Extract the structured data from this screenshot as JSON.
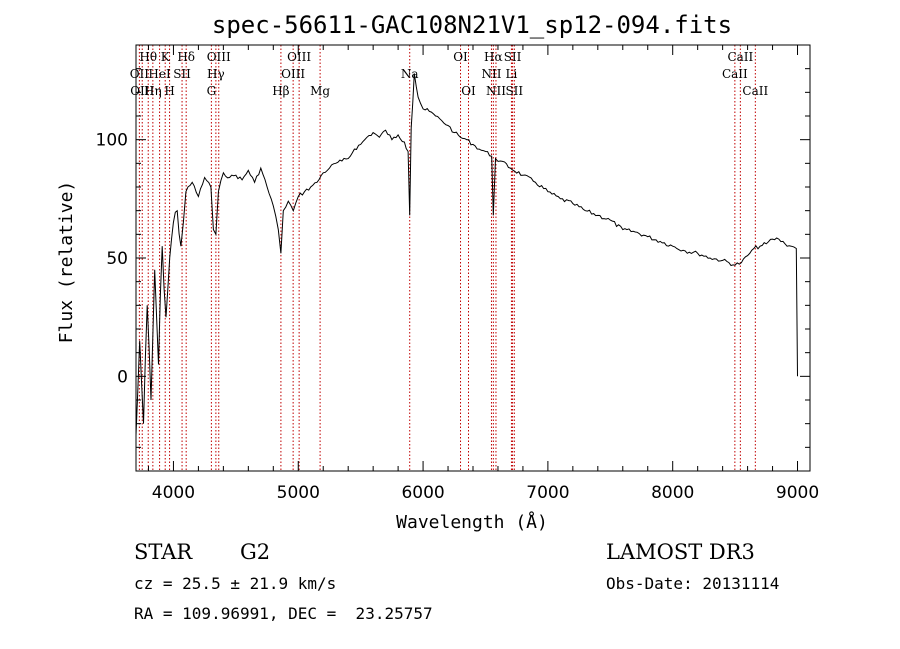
{
  "footer": {
    "object_class": "STAR",
    "subclass": "G2",
    "cz": "cz = 25.5 ± 21.9 km/s",
    "coords": "RA = 109.96991, DEC =  23.25757",
    "survey": "LAMOST DR3",
    "obs_date": "Obs-Date: 20131114"
  },
  "colors": {
    "spectrum": "#000000",
    "line_marker": "#c00000",
    "axes": "#000000"
  },
  "chart_data": {
    "type": "line",
    "title": "spec-56611-GAC108N21V1_sp12-094.fits",
    "xlabel": "Wavelength (Å)",
    "ylabel": "Flux (relative)",
    "xlim": [
      3700,
      9100
    ],
    "ylim": [
      -40,
      140
    ],
    "xticks": [
      4000,
      5000,
      6000,
      7000,
      8000,
      9000
    ],
    "xtick_labels": [
      "4000",
      "5000",
      "6000",
      "7000",
      "8000",
      "9000"
    ],
    "yticks": [
      0,
      50,
      100
    ],
    "ytick_labels": [
      "0",
      "50",
      "100"
    ],
    "series": [
      {
        "name": "spectrum",
        "x": [
          3700,
          3730,
          3760,
          3790,
          3820,
          3850,
          3880,
          3910,
          3940,
          3970,
          4000,
          4030,
          4060,
          4100,
          4150,
          4200,
          4250,
          4300,
          4320,
          4340,
          4360,
          4400,
          4450,
          4500,
          4550,
          4600,
          4650,
          4700,
          4750,
          4800,
          4840,
          4861,
          4880,
          4920,
          4960,
          5000,
          5050,
          5100,
          5150,
          5200,
          5250,
          5300,
          5350,
          5400,
          5450,
          5500,
          5550,
          5600,
          5650,
          5700,
          5750,
          5800,
          5850,
          5880,
          5893,
          5905,
          5930,
          5960,
          6000,
          6050,
          6100,
          6150,
          6200,
          6250,
          6300,
          6350,
          6400,
          6450,
          6500,
          6550,
          6563,
          6580,
          6620,
          6700,
          6800,
          6900,
          7000,
          7100,
          7200,
          7300,
          7400,
          7500,
          7600,
          7700,
          7800,
          7900,
          8000,
          8100,
          8200,
          8300,
          8400,
          8500,
          8550,
          8600,
          8650,
          8700,
          8750,
          8800,
          8850,
          8900,
          8950,
          8990,
          9000
        ],
        "y": [
          -25,
          15,
          -20,
          30,
          -10,
          45,
          5,
          55,
          25,
          50,
          65,
          70,
          55,
          78,
          82,
          76,
          84,
          80,
          62,
          60,
          78,
          86,
          84,
          85,
          83,
          87,
          82,
          88,
          80,
          72,
          62,
          52,
          70,
          74,
          70,
          76,
          78,
          80,
          82,
          86,
          88,
          90,
          91,
          92,
          96,
          98,
          101,
          103,
          101,
          104,
          100,
          102,
          99,
          95,
          68,
          105,
          128,
          118,
          113,
          112,
          110,
          108,
          106,
          103,
          101,
          100,
          98,
          96,
          95,
          93,
          68,
          92,
          91,
          88,
          85,
          82,
          78,
          75,
          73,
          70,
          68,
          66,
          62,
          61,
          59,
          57,
          55,
          53,
          52,
          50,
          49,
          47,
          48,
          51,
          54,
          55,
          56,
          58,
          58,
          56,
          55,
          54,
          0
        ]
      }
    ],
    "line_markers": [
      {
        "name": "Hθ",
        "wavelength": 3798,
        "row": 0
      },
      {
        "name": "OII",
        "wavelength": 3727,
        "row": 1
      },
      {
        "name": "OIII",
        "wavelength": 3750,
        "row": 2
      },
      {
        "name": "Hη",
        "wavelength": 3835,
        "row": 2
      },
      {
        "name": "HeI",
        "wavelength": 3889,
        "row": 1
      },
      {
        "name": "K",
        "wavelength": 3934,
        "row": 0
      },
      {
        "name": "SII",
        "wavelength": 4069,
        "row": 1
      },
      {
        "name": "H",
        "wavelength": 3969,
        "row": 2
      },
      {
        "name": "Hδ",
        "wavelength": 4102,
        "row": 0
      },
      {
        "name": "OIII",
        "wavelength": 4363,
        "row": 0
      },
      {
        "name": "Hγ",
        "wavelength": 4340,
        "row": 1
      },
      {
        "name": "G",
        "wavelength": 4304,
        "row": 2
      },
      {
        "name": "Hβ",
        "wavelength": 4861,
        "row": 2
      },
      {
        "name": "OIII",
        "wavelength": 4959,
        "row": 1
      },
      {
        "name": "OIII",
        "wavelength": 5007,
        "row": 0
      },
      {
        "name": "Mg",
        "wavelength": 5175,
        "row": 2
      },
      {
        "name": "Na",
        "wavelength": 5893,
        "row": 1
      },
      {
        "name": "OI",
        "wavelength": 6300,
        "row": 0
      },
      {
        "name": "OI",
        "wavelength": 6364,
        "row": 2
      },
      {
        "name": "Hα",
        "wavelength": 6563,
        "row": 0
      },
      {
        "name": "NII",
        "wavelength": 6548,
        "row": 1
      },
      {
        "name": "NII",
        "wavelength": 6584,
        "row": 2
      },
      {
        "name": "SII",
        "wavelength": 6717,
        "row": 0
      },
      {
        "name": "Li",
        "wavelength": 6708,
        "row": 1
      },
      {
        "name": "SII",
        "wavelength": 6731,
        "row": 2
      },
      {
        "name": "CaII",
        "wavelength": 8542,
        "row": 0
      },
      {
        "name": "CaII",
        "wavelength": 8498,
        "row": 1
      },
      {
        "name": "CaII",
        "wavelength": 8662,
        "row": 2
      }
    ]
  }
}
